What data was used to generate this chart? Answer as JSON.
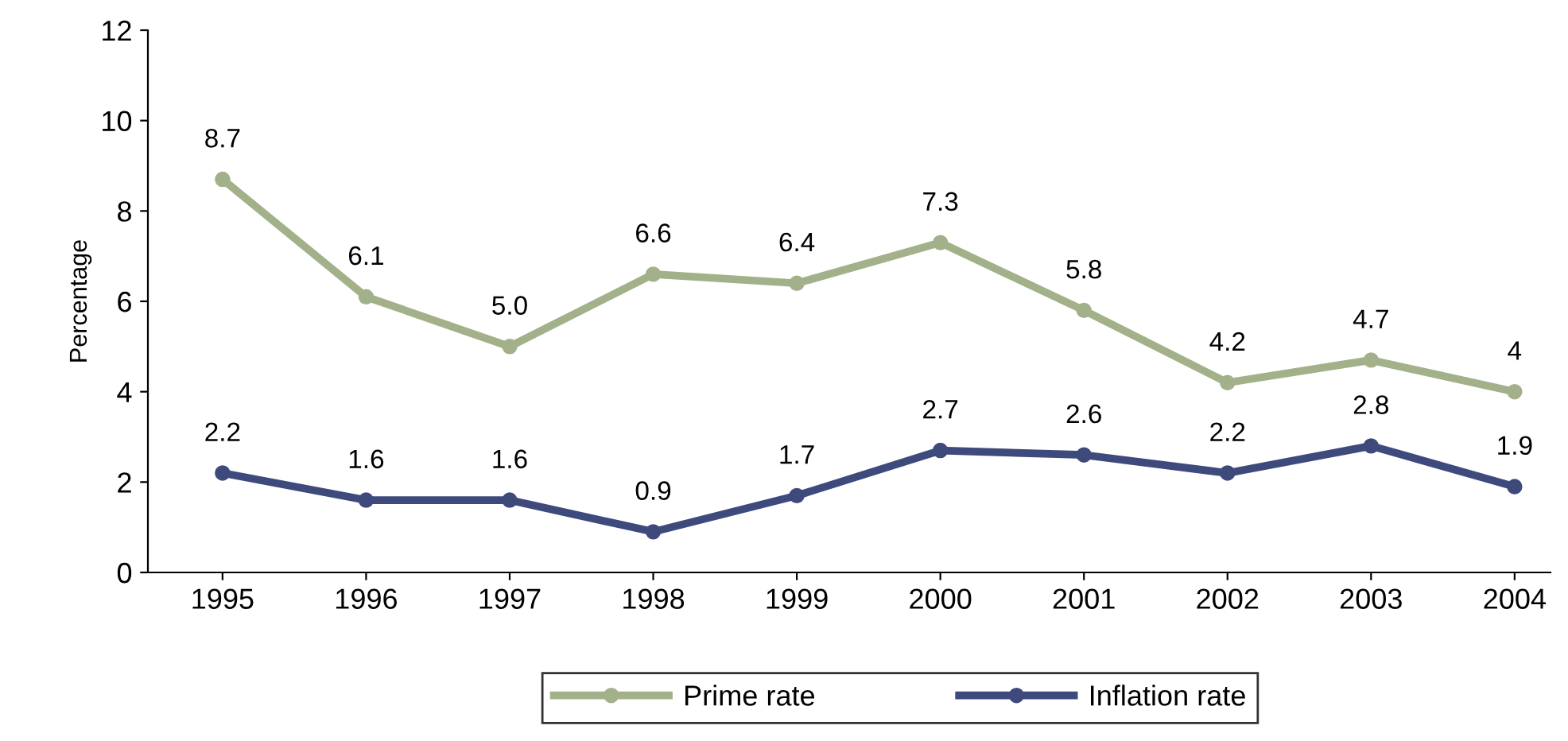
{
  "chart_data": {
    "type": "line",
    "ylabel": "Percentage",
    "categories": [
      "1995",
      "1996",
      "1997",
      "1998",
      "1999",
      "2000",
      "2001",
      "2002",
      "2003",
      "2004"
    ],
    "series": [
      {
        "name": "Prime rate",
        "color": "#a3b18b",
        "values": [
          8.7,
          6.1,
          5.0,
          6.6,
          6.4,
          7.3,
          5.8,
          4.2,
          4.7,
          4
        ],
        "value_labels": [
          "8.7",
          "6.1",
          "5.0",
          "6.6",
          "6.4",
          "7.3",
          "5.8",
          "4.2",
          "4.7",
          "4"
        ]
      },
      {
        "name": "Inflation rate",
        "color": "#3e4a7c",
        "values": [
          2.2,
          1.6,
          1.6,
          0.9,
          1.7,
          2.7,
          2.6,
          2.2,
          2.8,
          1.9
        ],
        "value_labels": [
          "2.2",
          "1.6",
          "1.6",
          "0.9",
          "1.7",
          "2.7",
          "2.6",
          "2.2",
          "2.8",
          "1.9"
        ]
      }
    ],
    "ylim": [
      0,
      12
    ],
    "yticks": [
      0,
      2,
      4,
      6,
      8,
      10,
      12
    ],
    "grid": false,
    "legend": "bottom",
    "marker": "circle",
    "line_style": "solid"
  }
}
